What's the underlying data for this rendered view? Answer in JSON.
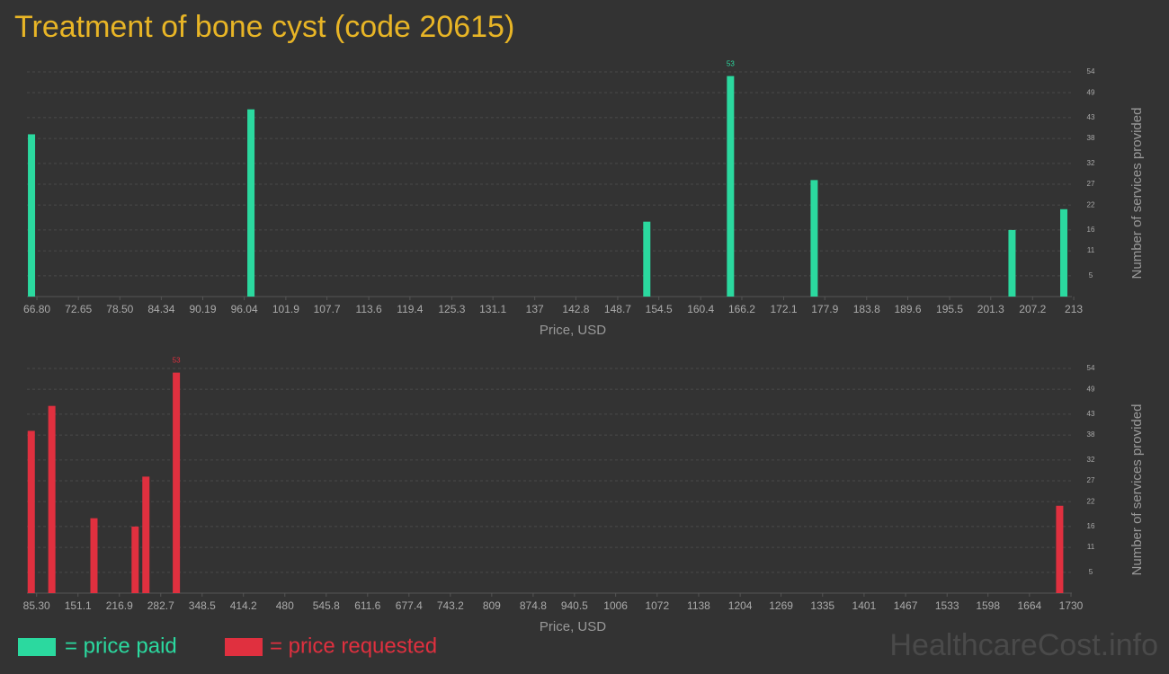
{
  "title": "Treatment of bone cyst (code 20615)",
  "watermark": "HealthcareCost.info",
  "chart_data": [
    {
      "type": "bar",
      "x_label": "Price, USD",
      "y_label": "Number of services provided",
      "grid": true,
      "xlim": [
        65.4,
        213.5
      ],
      "ylim": [
        0,
        54
      ],
      "xticks": [
        {
          "value": 66.8,
          "label": "66.80"
        },
        72.65,
        {
          "value": 78.5,
          "label": "78.50"
        },
        84.34,
        90.19,
        96.04,
        101.9,
        107.7,
        113.6,
        119.4,
        125.3,
        131.1,
        137,
        142.8,
        148.7,
        154.5,
        160.4,
        166.2,
        172.1,
        177.9,
        183.8,
        189.6,
        195.5,
        201.3,
        207.2,
        213
      ],
      "yticks": [
        5,
        11,
        16,
        22,
        27,
        32,
        38,
        43,
        49,
        54
      ],
      "series": [
        {
          "name": "= price paid",
          "color": "#2bd99f",
          "x": [
            66.04,
            96.98,
            152.8,
            164.6,
            176.4,
            204.3,
            211.6
          ],
          "values": [
            39,
            45,
            18,
            53,
            28,
            16,
            21
          ]
        }
      ],
      "max_label_index": 3
    },
    {
      "type": "bar",
      "x_label": "Price, USD",
      "y_label": "Number of services provided",
      "grid": true,
      "xlim": [
        70.0,
        1740
      ],
      "ylim": [
        0,
        54
      ],
      "xticks": [
        {
          "value": 85.3,
          "label": "85.30"
        },
        151.1,
        216.9,
        282.7,
        348.5,
        414.2,
        480,
        545.8,
        611.6,
        677.4,
        743.2,
        809,
        874.8,
        940.5,
        1006,
        1072,
        1138,
        1204,
        1269,
        1335,
        1401,
        1467,
        1533,
        1598,
        1664,
        1730
      ],
      "yticks": [
        5,
        11,
        16,
        22,
        27,
        32,
        38,
        43,
        49,
        54
      ],
      "series": [
        {
          "name": "= price requested",
          "color": "#e0303f",
          "x": [
            76.8,
            109.5,
            176.5,
            242,
            259.1,
            307.5,
            1712
          ],
          "values": [
            39,
            45,
            18,
            16,
            28,
            53,
            21
          ]
        }
      ],
      "max_label_index": 5
    }
  ]
}
